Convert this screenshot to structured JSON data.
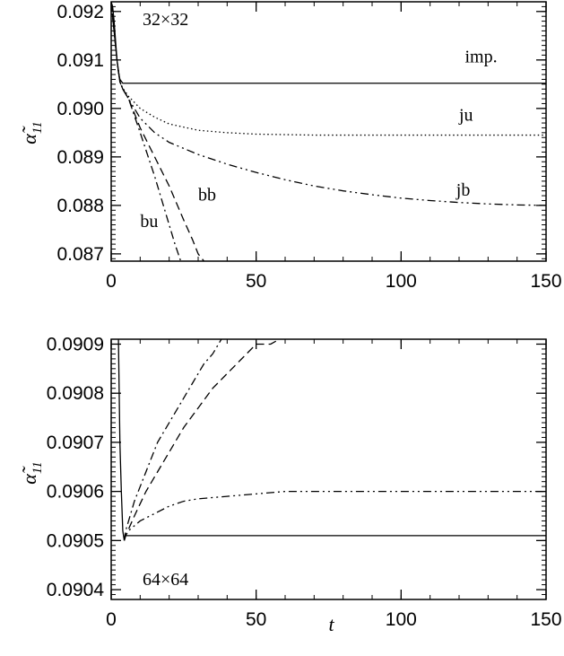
{
  "chart_data": [
    {
      "type": "line",
      "panel_label": "32×32",
      "ylabel": "α̃",
      "ylabel_sub": "11",
      "xlabel": "",
      "xlim": [
        0,
        150
      ],
      "ylim": [
        0.08685,
        0.0922
      ],
      "x_ticks": [
        0,
        50,
        100,
        150
      ],
      "x_tick_labels": [
        "0",
        "50",
        "100",
        "150"
      ],
      "y_ticks": [
        0.087,
        0.088,
        0.089,
        0.09,
        0.091,
        0.092
      ],
      "y_tick_labels": [
        "0.087",
        "0.088",
        "0.089",
        "0.090",
        "0.091",
        "0.092"
      ],
      "series": [
        {
          "name": "imp.",
          "dash": "solid",
          "x": [
            0,
            0.5,
            1,
            1.5,
            2,
            2.5,
            3,
            4,
            150
          ],
          "y": [
            0.0922,
            0.0921,
            0.0918,
            0.0914,
            0.091,
            0.09075,
            0.0906,
            0.09052,
            0.09052
          ]
        },
        {
          "name": "ju",
          "dash": "dotted",
          "x": [
            0,
            1,
            2,
            3,
            4,
            6,
            10,
            15,
            20,
            30,
            40,
            50,
            60,
            70,
            80,
            100,
            120,
            150
          ],
          "y": [
            0.0922,
            0.0916,
            0.091,
            0.09055,
            0.09042,
            0.09025,
            0.09,
            0.08982,
            0.08968,
            0.08955,
            0.0895,
            0.08947,
            0.08946,
            0.08945,
            0.08945,
            0.08945,
            0.08945,
            0.08945
          ]
        },
        {
          "name": "jb",
          "dash": "dashdotdot",
          "x": [
            0,
            1,
            2,
            3,
            4,
            6,
            10,
            15,
            20,
            30,
            40,
            50,
            60,
            70,
            80,
            90,
            100,
            110,
            120,
            130,
            140,
            150
          ],
          "y": [
            0.0922,
            0.0916,
            0.091,
            0.09055,
            0.0904,
            0.0902,
            0.0898,
            0.0895,
            0.0893,
            0.08905,
            0.08885,
            0.08868,
            0.08853,
            0.0884,
            0.0883,
            0.08822,
            0.08815,
            0.0881,
            0.08806,
            0.08803,
            0.08801,
            0.088
          ]
        },
        {
          "name": "bb",
          "dash": "dashed",
          "x": [
            0,
            1,
            2,
            3,
            4,
            6,
            10,
            15,
            20,
            25,
            28,
            30,
            32
          ],
          "y": [
            0.0922,
            0.0916,
            0.091,
            0.09055,
            0.0904,
            0.0902,
            0.0896,
            0.089,
            0.0884,
            0.0877,
            0.0873,
            0.087,
            0.08685
          ]
        },
        {
          "name": "bu",
          "dash": "dashdot",
          "x": [
            0,
            1,
            2,
            3,
            4,
            6,
            10,
            15,
            18,
            20,
            22,
            24
          ],
          "y": [
            0.0922,
            0.0916,
            0.091,
            0.09055,
            0.0904,
            0.0902,
            0.0895,
            0.0886,
            0.088,
            0.0876,
            0.0872,
            0.08685
          ]
        }
      ],
      "annotations": [
        {
          "text": "imp.",
          "x": 122,
          "y": 0.09095
        },
        {
          "text": "ju",
          "x": 120,
          "y": 0.08975
        },
        {
          "text": "jb",
          "x": 119,
          "y": 0.0882
        },
        {
          "text": "bb",
          "x": 30,
          "y": 0.0881
        },
        {
          "text": "bu",
          "x": 10,
          "y": 0.08755
        }
      ]
    },
    {
      "type": "line",
      "panel_label": "64×64",
      "ylabel": "α̃",
      "ylabel_sub": "11",
      "xlabel": "t",
      "xlim": [
        0,
        150
      ],
      "ylim": [
        0.09038,
        0.09091
      ],
      "x_ticks": [
        0,
        50,
        100,
        150
      ],
      "x_tick_labels": [
        "0",
        "50",
        "100",
        "150"
      ],
      "y_ticks": [
        0.0904,
        0.0905,
        0.0906,
        0.0907,
        0.0908,
        0.0909
      ],
      "y_tick_labels": [
        "0.0904",
        "0.0905",
        "0.0906",
        "0.0907",
        "0.0908",
        "0.0909"
      ],
      "series": [
        {
          "name": "imp.",
          "dash": "solid",
          "x": [
            2.5,
            3,
            3.5,
            4,
            4.5,
            5,
            6,
            150
          ],
          "y": [
            0.09091,
            0.0907,
            0.0906,
            0.09052,
            0.0905,
            0.09051,
            0.09051,
            0.09051
          ]
        },
        {
          "name": "jb",
          "dash": "dashdotdot",
          "x": [
            4.5,
            5,
            6,
            8,
            10,
            15,
            20,
            25,
            30,
            40,
            50,
            60,
            80,
            100,
            150
          ],
          "y": [
            0.0905,
            0.09051,
            0.09052,
            0.09053,
            0.09054,
            0.090555,
            0.09057,
            0.09058,
            0.090585,
            0.09059,
            0.090595,
            0.0906,
            0.0906,
            0.0906,
            0.0906
          ]
        },
        {
          "name": "bb",
          "dash": "dashed",
          "x": [
            4.5,
            5,
            8,
            12,
            16,
            20,
            25,
            30,
            35,
            40,
            45,
            50,
            55,
            58
          ],
          "y": [
            0.0905,
            0.09051,
            0.09055,
            0.0906,
            0.09064,
            0.09068,
            0.09073,
            0.09077,
            0.09081,
            0.09084,
            0.09087,
            0.0909,
            0.0909,
            0.09091
          ]
        },
        {
          "name": "bu",
          "dash": "dashdot",
          "x": [
            4.5,
            5,
            8,
            12,
            16,
            20,
            24,
            28,
            32,
            35,
            38
          ],
          "y": [
            0.0905,
            0.09052,
            0.09058,
            0.09064,
            0.0907,
            0.09074,
            0.09078,
            0.09082,
            0.09086,
            0.09088,
            0.09091
          ]
        }
      ],
      "annotations": []
    }
  ]
}
